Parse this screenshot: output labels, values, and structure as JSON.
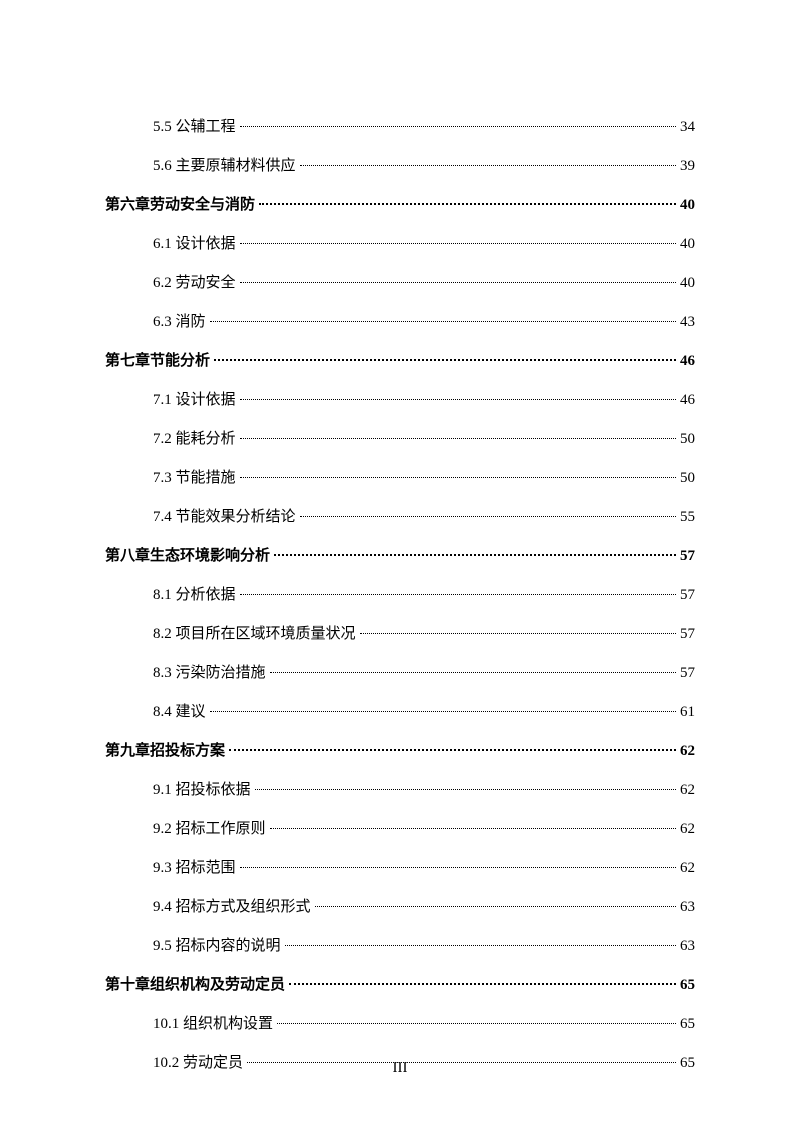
{
  "text_color": "#000000",
  "background_color": "#ffffff",
  "font_family": "SimSun",
  "page_number": "III",
  "toc_entries": [
    {
      "type": "section",
      "label": "5.5 公辅工程",
      "page": "34"
    },
    {
      "type": "section",
      "label": "5.6 主要原辅材料供应",
      "page": "39"
    },
    {
      "type": "chapter",
      "label": "第六章劳动安全与消防",
      "page": "40"
    },
    {
      "type": "section",
      "label": "6.1 设计依据",
      "page": "40"
    },
    {
      "type": "section",
      "label": "6.2 劳动安全",
      "page": "40"
    },
    {
      "type": "section",
      "label": "6.3 消防",
      "page": "43"
    },
    {
      "type": "chapter",
      "label": "第七章节能分析",
      "page": "46"
    },
    {
      "type": "section",
      "label": "7.1 设计依据",
      "page": "46"
    },
    {
      "type": "section",
      "label": "7.2 能耗分析",
      "page": "50"
    },
    {
      "type": "section",
      "label": "7.3 节能措施",
      "page": "50"
    },
    {
      "type": "section",
      "label": "7.4 节能效果分析结论",
      "page": "55"
    },
    {
      "type": "chapter",
      "label": "第八章生态环境影响分析",
      "page": "57"
    },
    {
      "type": "section",
      "label": "8.1 分析依据",
      "page": "57"
    },
    {
      "type": "section",
      "label": "8.2 项目所在区域环境质量状况",
      "page": "57"
    },
    {
      "type": "section",
      "label": "8.3 污染防治措施",
      "page": "57"
    },
    {
      "type": "section",
      "label": "8.4 建议",
      "page": "61"
    },
    {
      "type": "chapter",
      "label": "第九章招投标方案",
      "page": "62"
    },
    {
      "type": "section",
      "label": "9.1 招投标依据",
      "page": "62"
    },
    {
      "type": "section",
      "label": "9.2 招标工作原则",
      "page": "62"
    },
    {
      "type": "section",
      "label": "9.3 招标范围",
      "page": "62"
    },
    {
      "type": "section",
      "label": "9.4 招标方式及组织形式",
      "page": "63"
    },
    {
      "type": "section",
      "label": "9.5 招标内容的说明",
      "page": "63"
    },
    {
      "type": "chapter",
      "label": "第十章组织机构及劳动定员",
      "page": "65"
    },
    {
      "type": "section",
      "label": "10.1 组织机构设置",
      "page": "65"
    },
    {
      "type": "section",
      "label": "10.2 劳动定员",
      "page": "65"
    }
  ]
}
